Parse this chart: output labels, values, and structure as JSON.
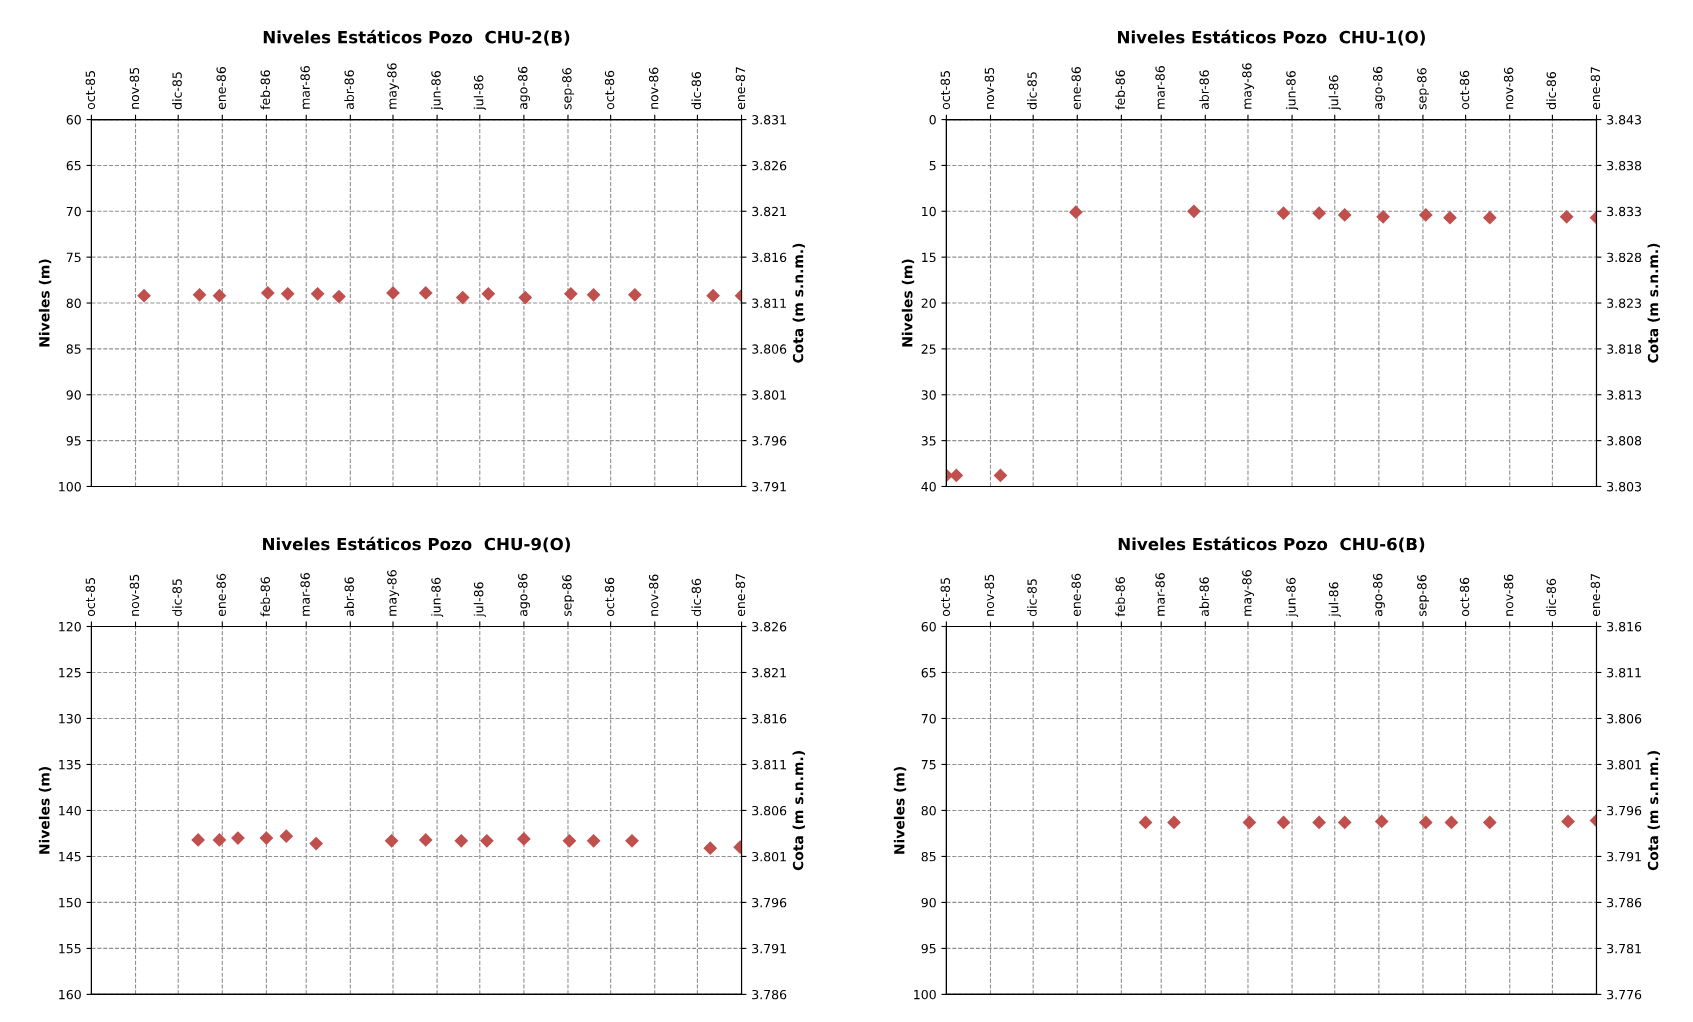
{
  "chart_data": [
    {
      "type": "scatter",
      "title": "Niveles Estáticos Pozo  CHU-2(B)",
      "ylabel": "Niveles (m)",
      "y2label": "Cota (m s.n.m.)",
      "marker": "diamond",
      "grid": true,
      "legend": false,
      "x": [
        "1985-11-07",
        "1985-12-16",
        "1985-12-30",
        "1986-02-02",
        "1986-02-16",
        "1986-03-09",
        "1986-03-24",
        "1986-05-01",
        "1986-05-24",
        "1986-06-19",
        "1986-07-07",
        "1986-08-02",
        "1986-09-03",
        "1986-09-19",
        "1986-10-18",
        "1986-12-12",
        "1987-01-01"
      ],
      "series": [
        {
          "color": "#c0504d",
          "values": [
            79.2,
            79.1,
            79.2,
            78.9,
            79.0,
            79.0,
            79.3,
            78.9,
            78.9,
            79.4,
            79.0,
            79.4,
            79.0,
            79.1,
            79.1,
            79.2,
            79.2
          ]
        }
      ],
      "xlim": [
        "1985-10-01",
        "1987-01-01"
      ],
      "xticks": [
        {
          "value": "1985-10-01",
          "label": "oct-85"
        },
        {
          "value": "1985-11-01",
          "label": "nov-85"
        },
        {
          "value": "1985-12-01",
          "label": "dic-85"
        },
        {
          "value": "1986-01-01",
          "label": "ene-86"
        },
        {
          "value": "1986-02-01",
          "label": "feb-86"
        },
        {
          "value": "1986-03-01",
          "label": "mar-86"
        },
        {
          "value": "1986-04-01",
          "label": "abr-86"
        },
        {
          "value": "1986-05-01",
          "label": "may-86"
        },
        {
          "value": "1986-06-01",
          "label": "jun-86"
        },
        {
          "value": "1986-07-01",
          "label": "jul-86"
        },
        {
          "value": "1986-08-01",
          "label": "ago-86"
        },
        {
          "value": "1986-09-01",
          "label": "sep-86"
        },
        {
          "value": "1986-10-01",
          "label": "oct-86"
        },
        {
          "value": "1986-11-01",
          "label": "nov-86"
        },
        {
          "value": "1986-12-01",
          "label": "dic-86"
        },
        {
          "value": "1987-01-01",
          "label": "ene-87"
        }
      ],
      "ylim": [
        100,
        60
      ],
      "yticks": [
        60,
        65,
        70,
        75,
        80,
        85,
        90,
        95,
        100
      ],
      "y2lim": [
        3791,
        3831
      ],
      "y2ticks": [
        {
          "value": 3831,
          "label": "3.831"
        },
        {
          "value": 3826,
          "label": "3.826"
        },
        {
          "value": 3821,
          "label": "3.821"
        },
        {
          "value": 3816,
          "label": "3.816"
        },
        {
          "value": 3811,
          "label": "3.811"
        },
        {
          "value": 3806,
          "label": "3.806"
        },
        {
          "value": 3801,
          "label": "3.801"
        },
        {
          "value": 3796,
          "label": "3.796"
        },
        {
          "value": 3791,
          "label": "3.791"
        }
      ]
    },
    {
      "type": "scatter",
      "title": "Niveles Estáticos Pozo  CHU-1(O)",
      "ylabel": "Niveles (m)",
      "y2label": "Cota (m s.n.m.)",
      "marker": "diamond",
      "grid": true,
      "legend": false,
      "x": [
        "1985-10-01",
        "1985-10-08",
        "1985-11-08",
        "1985-12-31",
        "1986-03-24",
        "1986-05-26",
        "1986-06-20",
        "1986-07-08",
        "1986-08-04",
        "1986-09-03",
        "1986-09-20",
        "1986-10-18",
        "1986-12-11",
        "1987-01-01"
      ],
      "series": [
        {
          "color": "#c0504d",
          "values": [
            38.8,
            38.8,
            38.8,
            10.1,
            10.0,
            10.2,
            10.2,
            10.4,
            10.6,
            10.4,
            10.7,
            10.7,
            10.6,
            10.7
          ]
        }
      ],
      "xlim": [
        "1985-10-01",
        "1987-01-01"
      ],
      "xticks": [
        {
          "value": "1985-10-01",
          "label": "oct-85"
        },
        {
          "value": "1985-11-01",
          "label": "nov-85"
        },
        {
          "value": "1985-12-01",
          "label": "dic-85"
        },
        {
          "value": "1986-01-01",
          "label": "ene-86"
        },
        {
          "value": "1986-02-01",
          "label": "feb-86"
        },
        {
          "value": "1986-03-01",
          "label": "mar-86"
        },
        {
          "value": "1986-04-01",
          "label": "abr-86"
        },
        {
          "value": "1986-05-01",
          "label": "may-86"
        },
        {
          "value": "1986-06-01",
          "label": "jun-86"
        },
        {
          "value": "1986-07-01",
          "label": "jul-86"
        },
        {
          "value": "1986-08-01",
          "label": "ago-86"
        },
        {
          "value": "1986-09-01",
          "label": "sep-86"
        },
        {
          "value": "1986-10-01",
          "label": "oct-86"
        },
        {
          "value": "1986-11-01",
          "label": "nov-86"
        },
        {
          "value": "1986-12-01",
          "label": "dic-86"
        },
        {
          "value": "1987-01-01",
          "label": "ene-87"
        }
      ],
      "ylim": [
        40,
        0
      ],
      "yticks": [
        0,
        5,
        10,
        15,
        20,
        25,
        30,
        35,
        40
      ],
      "y2lim": [
        3803,
        3843
      ],
      "y2ticks": [
        {
          "value": 3843,
          "label": "3.843"
        },
        {
          "value": 3838,
          "label": "3.838"
        },
        {
          "value": 3833,
          "label": "3.833"
        },
        {
          "value": 3828,
          "label": "3.828"
        },
        {
          "value": 3823,
          "label": "3.823"
        },
        {
          "value": 3818,
          "label": "3.818"
        },
        {
          "value": 3813,
          "label": "3.813"
        },
        {
          "value": 3808,
          "label": "3.808"
        },
        {
          "value": 3803,
          "label": "3.803"
        }
      ]
    },
    {
      "type": "scatter",
      "title": "Niveles Estáticos Pozo  CHU-9(O)",
      "ylabel": "Niveles (m)",
      "y2label": "Cota (m s.n.m.)",
      "marker": "diamond",
      "grid": true,
      "legend": false,
      "x": [
        "1985-12-15",
        "1985-12-30",
        "1986-01-12",
        "1986-02-01",
        "1986-02-15",
        "1986-03-08",
        "1986-04-30",
        "1986-05-24",
        "1986-06-18",
        "1986-07-06",
        "1986-08-01",
        "1986-09-02",
        "1986-09-19",
        "1986-10-16",
        "1986-12-10",
        "1986-12-31"
      ],
      "series": [
        {
          "color": "#c0504d",
          "values": [
            143.2,
            143.2,
            143.0,
            143.0,
            142.8,
            143.6,
            143.3,
            143.2,
            143.3,
            143.3,
            143.1,
            143.3,
            143.3,
            143.3,
            144.1,
            144.0
          ]
        }
      ],
      "xlim": [
        "1985-10-01",
        "1987-01-01"
      ],
      "xticks": [
        {
          "value": "1985-10-01",
          "label": "oct-85"
        },
        {
          "value": "1985-11-01",
          "label": "nov-85"
        },
        {
          "value": "1985-12-01",
          "label": "dic-85"
        },
        {
          "value": "1986-01-01",
          "label": "ene-86"
        },
        {
          "value": "1986-02-01",
          "label": "feb-86"
        },
        {
          "value": "1986-03-01",
          "label": "mar-86"
        },
        {
          "value": "1986-04-01",
          "label": "abr-86"
        },
        {
          "value": "1986-05-01",
          "label": "may-86"
        },
        {
          "value": "1986-06-01",
          "label": "jun-86"
        },
        {
          "value": "1986-07-01",
          "label": "jul-86"
        },
        {
          "value": "1986-08-01",
          "label": "ago-86"
        },
        {
          "value": "1986-09-01",
          "label": "sep-86"
        },
        {
          "value": "1986-10-01",
          "label": "oct-86"
        },
        {
          "value": "1986-11-01",
          "label": "nov-86"
        },
        {
          "value": "1986-12-01",
          "label": "dic-86"
        },
        {
          "value": "1987-01-01",
          "label": "ene-87"
        }
      ],
      "ylim": [
        160,
        120
      ],
      "yticks": [
        120,
        125,
        130,
        135,
        140,
        145,
        150,
        155,
        160
      ],
      "y2lim": [
        3786,
        3826
      ],
      "y2ticks": [
        {
          "value": 3826,
          "label": "3.826"
        },
        {
          "value": 3821,
          "label": "3.821"
        },
        {
          "value": 3816,
          "label": "3.816"
        },
        {
          "value": 3811,
          "label": "3.811"
        },
        {
          "value": 3806,
          "label": "3.806"
        },
        {
          "value": 3801,
          "label": "3.801"
        },
        {
          "value": 3796,
          "label": "3.796"
        },
        {
          "value": 3791,
          "label": "3.791"
        },
        {
          "value": 3786,
          "label": "3.786"
        }
      ]
    },
    {
      "type": "scatter",
      "title": "Niveles Estáticos Pozo  CHU-6(B)",
      "ylabel": "Niveles (m)",
      "y2label": "Cota (m s.n.m.)",
      "marker": "diamond",
      "grid": true,
      "legend": false,
      "x": [
        "1986-02-18",
        "1986-03-10",
        "1986-05-02",
        "1986-05-26",
        "1986-06-20",
        "1986-07-08",
        "1986-08-03",
        "1986-09-03",
        "1986-09-21",
        "1986-10-18",
        "1986-12-12",
        "1987-01-01"
      ],
      "series": [
        {
          "color": "#c0504d",
          "values": [
            81.3,
            81.3,
            81.3,
            81.3,
            81.3,
            81.3,
            81.2,
            81.3,
            81.3,
            81.3,
            81.2,
            81.1
          ]
        }
      ],
      "xlim": [
        "1985-10-01",
        "1987-01-01"
      ],
      "xticks": [
        {
          "value": "1985-10-01",
          "label": "oct-85"
        },
        {
          "value": "1985-11-01",
          "label": "nov-85"
        },
        {
          "value": "1985-12-01",
          "label": "dic-85"
        },
        {
          "value": "1986-01-01",
          "label": "ene-86"
        },
        {
          "value": "1986-02-01",
          "label": "feb-86"
        },
        {
          "value": "1986-03-01",
          "label": "mar-86"
        },
        {
          "value": "1986-04-01",
          "label": "abr-86"
        },
        {
          "value": "1986-05-01",
          "label": "may-86"
        },
        {
          "value": "1986-06-01",
          "label": "jun-86"
        },
        {
          "value": "1986-07-01",
          "label": "jul-86"
        },
        {
          "value": "1986-08-01",
          "label": "ago-86"
        },
        {
          "value": "1986-09-01",
          "label": "sep-86"
        },
        {
          "value": "1986-10-01",
          "label": "oct-86"
        },
        {
          "value": "1986-11-01",
          "label": "nov-86"
        },
        {
          "value": "1986-12-01",
          "label": "dic-86"
        },
        {
          "value": "1987-01-01",
          "label": "ene-87"
        }
      ],
      "ylim": [
        100,
        60
      ],
      "yticks": [
        60,
        65,
        70,
        75,
        80,
        85,
        90,
        95,
        100
      ],
      "y2lim": [
        3776,
        3816
      ],
      "y2ticks": [
        {
          "value": 3816,
          "label": "3.816"
        },
        {
          "value": 3811,
          "label": "3.811"
        },
        {
          "value": 3806,
          "label": "3.806"
        },
        {
          "value": 3801,
          "label": "3.801"
        },
        {
          "value": 3796,
          "label": "3.796"
        },
        {
          "value": 3791,
          "label": "3.791"
        },
        {
          "value": 3786,
          "label": "3.786"
        },
        {
          "value": 3781,
          "label": "3.781"
        },
        {
          "value": 3776,
          "label": "3.776"
        }
      ]
    }
  ]
}
